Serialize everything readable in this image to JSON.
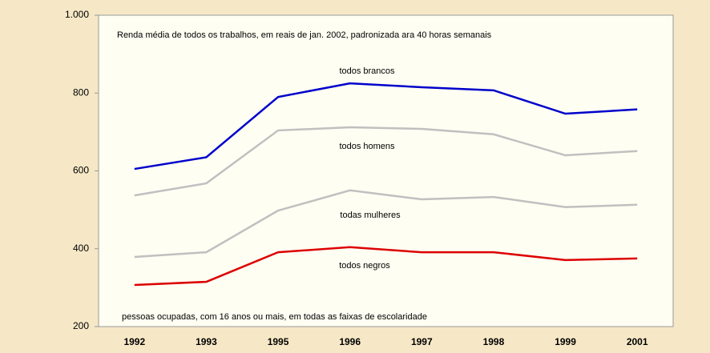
{
  "chart_data": {
    "type": "line",
    "title": "Renda média de todos os trabalhos, em reais de jan. 2002, padronizada ara 40 horas semanais",
    "annotation": "pessoas ocupadas, com 16 anos ou mais, em todas as faixas de escolaridade",
    "categories": [
      "1992",
      "1993",
      "1995",
      "1996",
      "1997",
      "1998",
      "1999",
      "2001"
    ],
    "series": [
      {
        "name": "todos brancos",
        "color": "#0000cc",
        "values": [
          605,
          635,
          790,
          825,
          815,
          807,
          747,
          758
        ]
      },
      {
        "name": "todos homens",
        "color": "#c0c0c0",
        "values": [
          537,
          568,
          704,
          712,
          708,
          694,
          640,
          651
        ]
      },
      {
        "name": "todas mulheres",
        "color": "#c0c0c0",
        "values": [
          379,
          391,
          498,
          550,
          527,
          533,
          507,
          513
        ]
      },
      {
        "name": "todos negros",
        "color": "#dd0000",
        "values": [
          307,
          315,
          391,
          404,
          391,
          391,
          371,
          375
        ]
      }
    ],
    "ylim": [
      200,
      1000
    ],
    "yticks": [
      200,
      400,
      600,
      800,
      {
        "value": 1000,
        "label": "1.000"
      }
    ]
  }
}
